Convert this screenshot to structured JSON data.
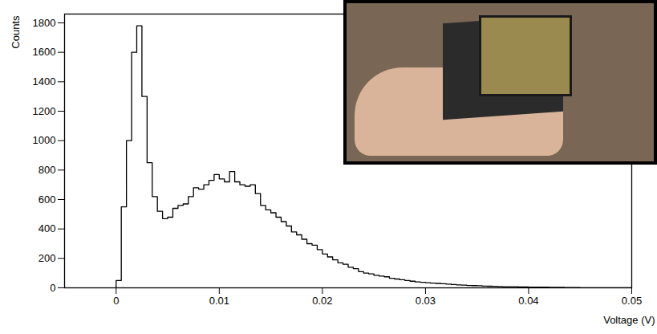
{
  "chart_data": {
    "type": "histogram",
    "x_label": "Voltage (V)",
    "y_label": "Counts",
    "color": "#000000",
    "bins": [
      0,
      0.0005,
      0.001,
      0.0015,
      0.002,
      0.0025,
      0.003,
      0.0035,
      0.004,
      0.0045,
      0.005,
      0.0055,
      0.006,
      0.0065,
      0.007,
      0.0075,
      0.008,
      0.0085,
      0.009,
      0.0095,
      0.01,
      0.0105,
      0.011,
      0.0115,
      0.012,
      0.0125,
      0.013,
      0.0135,
      0.014,
      0.0145,
      0.015,
      0.0155,
      0.016,
      0.0165,
      0.017,
      0.0175,
      0.018,
      0.0185,
      0.019,
      0.0195,
      0.02,
      0.0205,
      0.021,
      0.0215,
      0.022,
      0.0225,
      0.023,
      0.0235,
      0.024,
      0.0245,
      0.025,
      0.0255,
      0.026,
      0.0265,
      0.027,
      0.0275,
      0.028,
      0.0285,
      0.029,
      0.0295,
      0.03,
      0.0305,
      0.031,
      0.0315,
      0.032,
      0.0325,
      0.033,
      0.0335,
      0.034,
      0.0345,
      0.035,
      0.0355,
      0.036,
      0.0365,
      0.037,
      0.0375,
      0.038,
      0.0385,
      0.039,
      0.0395,
      0.04,
      0.0405,
      0.041,
      0.0415,
      0.042,
      0.0425,
      0.043,
      0.0435,
      0.044,
      0.0445,
      0.045,
      0.0455,
      0.046,
      0.0465,
      0.047,
      0.0475,
      0.048,
      0.0485,
      0.049,
      0.0495,
      0.05
    ],
    "counts": [
      50,
      550,
      1000,
      1600,
      1780,
      1300,
      850,
      620,
      520,
      470,
      480,
      540,
      560,
      570,
      620,
      680,
      670,
      700,
      730,
      770,
      740,
      720,
      790,
      720,
      700,
      690,
      700,
      640,
      560,
      530,
      510,
      480,
      450,
      420,
      380,
      360,
      330,
      300,
      290,
      260,
      230,
      210,
      190,
      170,
      160,
      140,
      130,
      110,
      100,
      95,
      85,
      80,
      75,
      65,
      60,
      55,
      50,
      45,
      40,
      38,
      35,
      32,
      30,
      28,
      25,
      22,
      20,
      18,
      16,
      15,
      14,
      12,
      11,
      10,
      9,
      8,
      7,
      7,
      6,
      6,
      5,
      5,
      4,
      4,
      3,
      3,
      3,
      2,
      2,
      2,
      1,
      1,
      1,
      1,
      1,
      1,
      1,
      1,
      1,
      1
    ],
    "xlim": [
      -0.005,
      0.05
    ],
    "ylim": [
      0,
      1860
    ],
    "xticks": [
      0,
      0.01,
      0.02,
      0.03,
      0.04,
      0.05
    ],
    "yticks": [
      0,
      200,
      400,
      600,
      800,
      1000,
      1200,
      1400,
      1600,
      1800
    ],
    "grid": false
  }
}
